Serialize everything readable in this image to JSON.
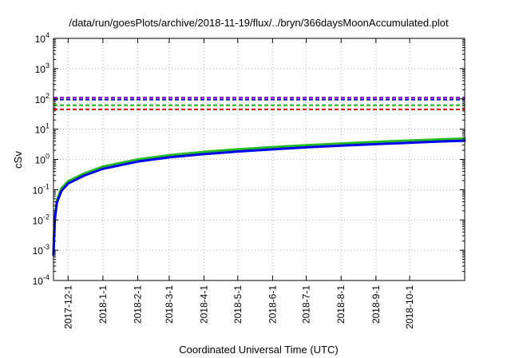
{
  "chart_data": {
    "type": "line",
    "title": "/data/run/goesPlots/archive/2018-11-19/flux/../bryn/366daysMoonAccumulated.plot",
    "xlabel": "Coordinated Universal Time (UTC)",
    "ylabel": "cSv",
    "yscale": "log",
    "ylim": [
      0.0001,
      10000
    ],
    "xlim": [
      "2017-11-18",
      "2018-11-19"
    ],
    "grid": true,
    "x_ticks": [
      {
        "date": "2017-12-01",
        "label": "2017-12-1"
      },
      {
        "date": "2018-01-01",
        "label": "2018-1-1"
      },
      {
        "date": "2018-02-01",
        "label": "2018-2-1"
      },
      {
        "date": "2018-03-01",
        "label": "2018-3-1"
      },
      {
        "date": "2018-04-01",
        "label": "2018-4-1"
      },
      {
        "date": "2018-05-01",
        "label": "2018-5-1"
      },
      {
        "date": "2018-06-01",
        "label": "2018-6-1"
      },
      {
        "date": "2018-07-01",
        "label": "2018-7-1"
      },
      {
        "date": "2018-08-01",
        "label": "2018-8-1"
      },
      {
        "date": "2018-09-01",
        "label": "2018-9-1"
      },
      {
        "date": "2018-10-01",
        "label": "2018-10-1"
      }
    ],
    "y_ticks": [
      {
        "value": 0.0001,
        "base": "10",
        "exp": "-4"
      },
      {
        "value": 0.001,
        "base": "10",
        "exp": "-3"
      },
      {
        "value": 0.01,
        "base": "10",
        "exp": "-2"
      },
      {
        "value": 0.1,
        "base": "10",
        "exp": "-1"
      },
      {
        "value": 1,
        "base": "10",
        "exp": "0"
      },
      {
        "value": 10,
        "base": "10",
        "exp": "1"
      },
      {
        "value": 100,
        "base": "10",
        "exp": "2"
      },
      {
        "value": 1000,
        "base": "10",
        "exp": "3"
      },
      {
        "value": 10000,
        "base": "10",
        "exp": "4"
      }
    ],
    "reference_lines": [
      {
        "value": 110,
        "color": "#9400d3"
      },
      {
        "value": 95,
        "color": "#0000cc"
      },
      {
        "value": 62,
        "color": "#00bb00"
      },
      {
        "value": 45,
        "color": "#dd0000"
      }
    ],
    "series": [
      {
        "color": "#22bb22",
        "x": [
          "2017-11-18",
          "2017-11-19",
          "2017-11-21",
          "2017-11-25",
          "2017-12-01",
          "2017-12-15",
          "2018-01-01",
          "2018-02-01",
          "2018-03-01",
          "2018-04-01",
          "2018-05-01",
          "2018-06-01",
          "2018-07-01",
          "2018-08-01",
          "2018-09-01",
          "2018-10-01",
          "2018-11-01",
          "2018-11-19"
        ],
        "y": [
          0.0009,
          0.011,
          0.045,
          0.11,
          0.19,
          0.34,
          0.58,
          1.0,
          1.38,
          1.78,
          2.15,
          2.55,
          2.95,
          3.35,
          3.8,
          4.2,
          4.65,
          4.9
        ]
      },
      {
        "color": "#0000ee",
        "x": [
          "2017-11-18",
          "2017-11-19",
          "2017-11-21",
          "2017-11-25",
          "2017-12-01",
          "2017-12-15",
          "2018-01-01",
          "2018-02-01",
          "2018-03-01",
          "2018-04-01",
          "2018-05-01",
          "2018-06-01",
          "2018-07-01",
          "2018-08-01",
          "2018-09-01",
          "2018-10-01",
          "2018-11-01",
          "2018-11-19"
        ],
        "y": [
          0.0007,
          0.009,
          0.037,
          0.09,
          0.16,
          0.29,
          0.49,
          0.85,
          1.17,
          1.5,
          1.82,
          2.15,
          2.5,
          2.85,
          3.2,
          3.55,
          3.95,
          4.15
        ]
      }
    ]
  }
}
